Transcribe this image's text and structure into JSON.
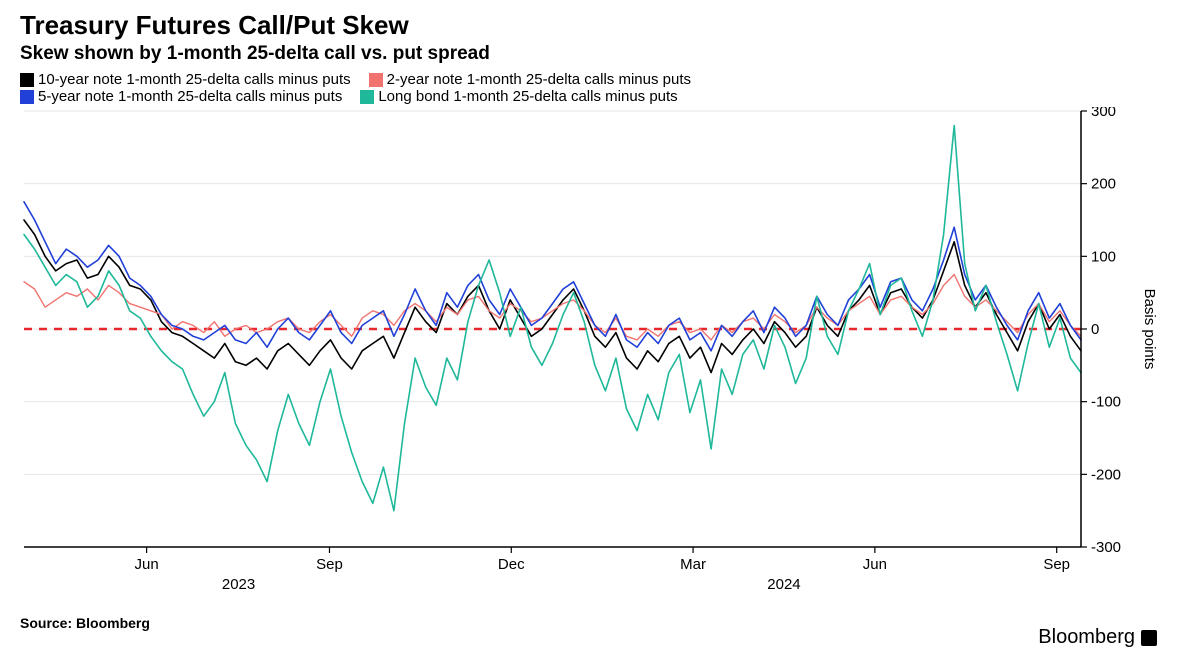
{
  "title": "Treasury Futures Call/Put Skew",
  "subtitle": "Skew shown by 1-month 25-delta call vs. put spread",
  "source": "Source: Bloomberg",
  "brand": "Bloomberg",
  "chart": {
    "type": "line",
    "background_color": "#ffffff",
    "grid_color": "#e6e6e6",
    "axis_color": "#000000",
    "zero_line_color": "#e8262c",
    "right_axis_label": "Basis points",
    "label_fontsize": 15,
    "tick_fontsize": 15,
    "ylim": [
      -300,
      300
    ],
    "yticks": [
      -300,
      -200,
      -100,
      0,
      100,
      200,
      300
    ],
    "x_month_labels": [
      {
        "t": 0.116,
        "label": "Jun"
      },
      {
        "t": 0.289,
        "label": "Sep"
      },
      {
        "t": 0.461,
        "label": "Dec"
      },
      {
        "t": 0.633,
        "label": "Mar"
      },
      {
        "t": 0.805,
        "label": "Jun"
      },
      {
        "t": 0.977,
        "label": "Sep"
      }
    ],
    "x_year_labels": [
      {
        "t": 0.203,
        "label": "2023"
      },
      {
        "t": 0.719,
        "label": "2024"
      }
    ],
    "legend": [
      {
        "label": "10-year note 1-month 25-delta calls minus puts",
        "color": "#000000"
      },
      {
        "label": "2-year note 1-month 25-delta calls minus puts",
        "color": "#f0736f"
      },
      {
        "label": "5-year note 1-month 25-delta calls minus puts",
        "color": "#2040d8"
      },
      {
        "label": "Long bond 1-month 25-delta calls minus puts",
        "color": "#1fb89a"
      }
    ],
    "series": [
      {
        "name": "10-year",
        "color": "#000000",
        "width": 1.6,
        "data": [
          150,
          130,
          100,
          80,
          90,
          95,
          70,
          75,
          100,
          85,
          60,
          55,
          40,
          10,
          -5,
          -10,
          -20,
          -30,
          -40,
          -20,
          -45,
          -50,
          -40,
          -55,
          -30,
          -20,
          -35,
          -50,
          -30,
          -15,
          -40,
          -55,
          -30,
          -20,
          -10,
          -40,
          -5,
          30,
          10,
          -5,
          35,
          20,
          45,
          60,
          25,
          0,
          40,
          15,
          -10,
          0,
          20,
          40,
          55,
          25,
          -10,
          -25,
          -5,
          -40,
          -55,
          -30,
          -45,
          -20,
          -10,
          -40,
          -25,
          -60,
          -20,
          -35,
          -15,
          0,
          -20,
          10,
          -5,
          -25,
          -10,
          30,
          5,
          -10,
          25,
          40,
          60,
          20,
          50,
          55,
          30,
          15,
          40,
          80,
          120,
          60,
          30,
          50,
          20,
          -5,
          -30,
          10,
          35,
          0,
          20,
          -10,
          -30
        ]
      },
      {
        "name": "2-year",
        "color": "#f0736f",
        "width": 1.4,
        "data": [
          65,
          55,
          30,
          40,
          50,
          45,
          55,
          40,
          60,
          50,
          35,
          30,
          25,
          20,
          0,
          10,
          5,
          -5,
          10,
          -10,
          0,
          5,
          -5,
          0,
          10,
          15,
          0,
          -5,
          10,
          20,
          5,
          -10,
          15,
          25,
          20,
          5,
          25,
          35,
          25,
          10,
          30,
          20,
          40,
          45,
          25,
          15,
          35,
          25,
          10,
          15,
          25,
          35,
          40,
          25,
          5,
          -5,
          15,
          -10,
          -15,
          0,
          -10,
          5,
          10,
          -5,
          0,
          -15,
          5,
          -5,
          10,
          15,
          0,
          20,
          10,
          -5,
          5,
          30,
          15,
          5,
          25,
          35,
          45,
          20,
          40,
          45,
          30,
          20,
          35,
          60,
          75,
          45,
          30,
          40,
          25,
          10,
          -5,
          20,
          35,
          10,
          25,
          5,
          -10
        ]
      },
      {
        "name": "5-year",
        "color": "#2040d8",
        "width": 1.6,
        "data": [
          175,
          150,
          120,
          90,
          110,
          100,
          85,
          95,
          115,
          100,
          70,
          60,
          45,
          20,
          5,
          0,
          -10,
          -15,
          -5,
          5,
          -15,
          -20,
          -5,
          -25,
          0,
          15,
          -5,
          -15,
          5,
          25,
          -5,
          -20,
          5,
          15,
          25,
          -10,
          20,
          55,
          25,
          5,
          50,
          30,
          60,
          75,
          40,
          20,
          55,
          30,
          5,
          15,
          35,
          55,
          65,
          35,
          5,
          -10,
          20,
          -15,
          -25,
          -5,
          -20,
          5,
          15,
          -15,
          -5,
          -30,
          5,
          -10,
          10,
          25,
          -5,
          30,
          15,
          -10,
          5,
          45,
          20,
          5,
          40,
          55,
          75,
          30,
          65,
          70,
          40,
          25,
          55,
          95,
          140,
          75,
          40,
          60,
          30,
          5,
          -15,
          25,
          50,
          15,
          35,
          5,
          -15
        ]
      },
      {
        "name": "Long bond",
        "color": "#1fb89a",
        "width": 1.6,
        "data": [
          130,
          110,
          85,
          60,
          75,
          65,
          30,
          45,
          80,
          60,
          25,
          15,
          -10,
          -30,
          -45,
          -55,
          -90,
          -120,
          -100,
          -60,
          -130,
          -160,
          -180,
          -210,
          -140,
          -90,
          -130,
          -160,
          -100,
          -55,
          -120,
          -170,
          -210,
          -240,
          -190,
          -250,
          -130,
          -40,
          -80,
          -105,
          -40,
          -70,
          10,
          60,
          95,
          50,
          -10,
          30,
          -25,
          -50,
          -20,
          20,
          50,
          10,
          -50,
          -85,
          -40,
          -110,
          -140,
          -90,
          -125,
          -60,
          -35,
          -115,
          -70,
          -165,
          -55,
          -90,
          -35,
          -15,
          -55,
          5,
          -25,
          -75,
          -40,
          45,
          -10,
          -35,
          25,
          55,
          90,
          20,
          60,
          70,
          25,
          -10,
          40,
          130,
          280,
          90,
          25,
          60,
          10,
          -35,
          -85,
          -20,
          35,
          -25,
          15,
          -40,
          -60
        ]
      }
    ]
  }
}
